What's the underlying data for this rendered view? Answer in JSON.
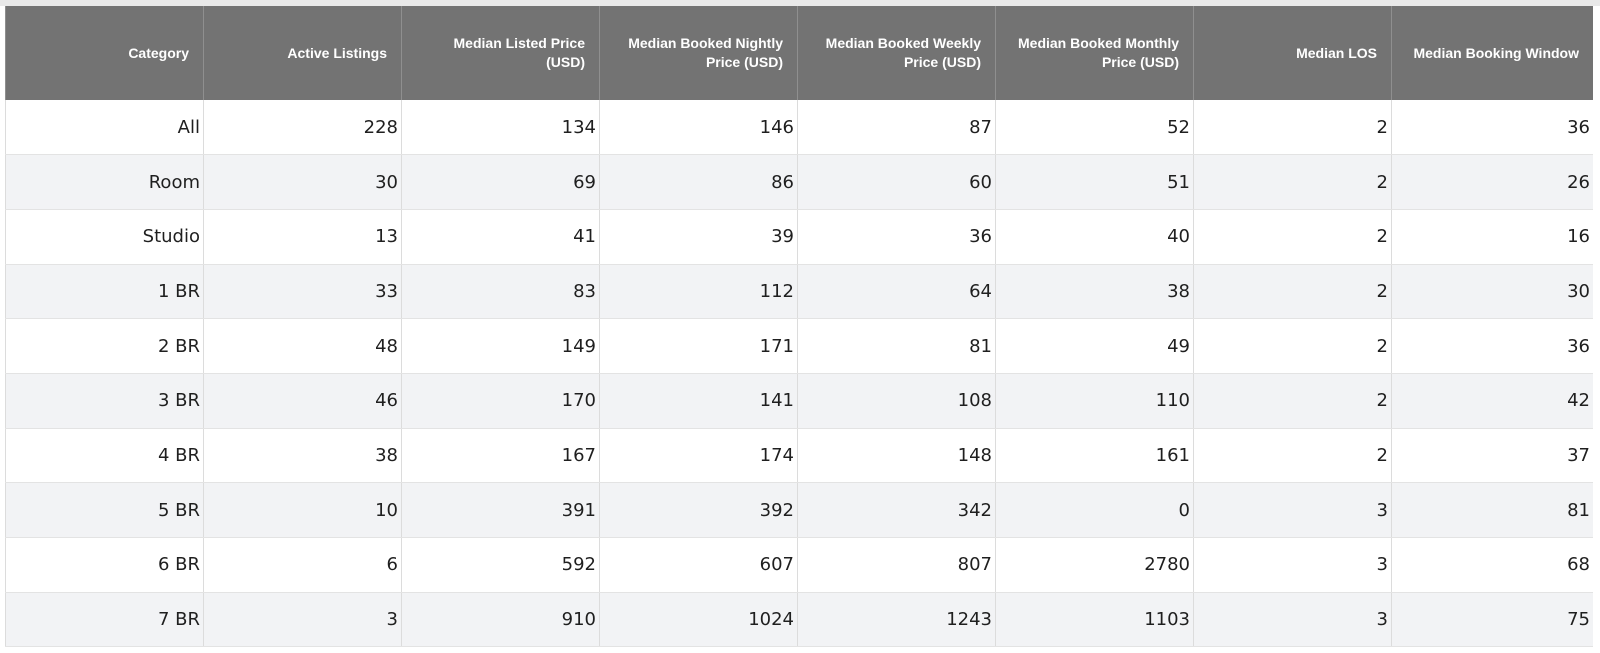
{
  "table": {
    "headers": [
      "Category",
      "Active Listings",
      "Median Listed Price (USD)",
      "Median Booked Nightly Price (USD)",
      "Median Booked Weekly Price (USD)",
      "Median Booked Monthly Price (USD)",
      "Median LOS",
      "Median Booking Window"
    ],
    "rows": [
      [
        "All",
        "228",
        "134",
        "146",
        "87",
        "52",
        "2",
        "36"
      ],
      [
        "Room",
        "30",
        "69",
        "86",
        "60",
        "51",
        "2",
        "26"
      ],
      [
        "Studio",
        "13",
        "41",
        "39",
        "36",
        "40",
        "2",
        "16"
      ],
      [
        "1 BR",
        "33",
        "83",
        "112",
        "64",
        "38",
        "2",
        "30"
      ],
      [
        "2 BR",
        "48",
        "149",
        "171",
        "81",
        "49",
        "2",
        "36"
      ],
      [
        "3 BR",
        "46",
        "170",
        "141",
        "108",
        "110",
        "2",
        "42"
      ],
      [
        "4 BR",
        "38",
        "167",
        "174",
        "148",
        "161",
        "2",
        "37"
      ],
      [
        "5 BR",
        "10",
        "391",
        "392",
        "342",
        "0",
        "3",
        "81"
      ],
      [
        "6 BR",
        "6",
        "592",
        "607",
        "807",
        "2780",
        "3",
        "68"
      ],
      [
        "7 BR",
        "3",
        "910",
        "1024",
        "1243",
        "1103",
        "3",
        "75"
      ]
    ]
  },
  "colors": {
    "header_bg": "#737373",
    "header_text": "#ffffff",
    "row_alt_bg": "#f2f3f5"
  }
}
